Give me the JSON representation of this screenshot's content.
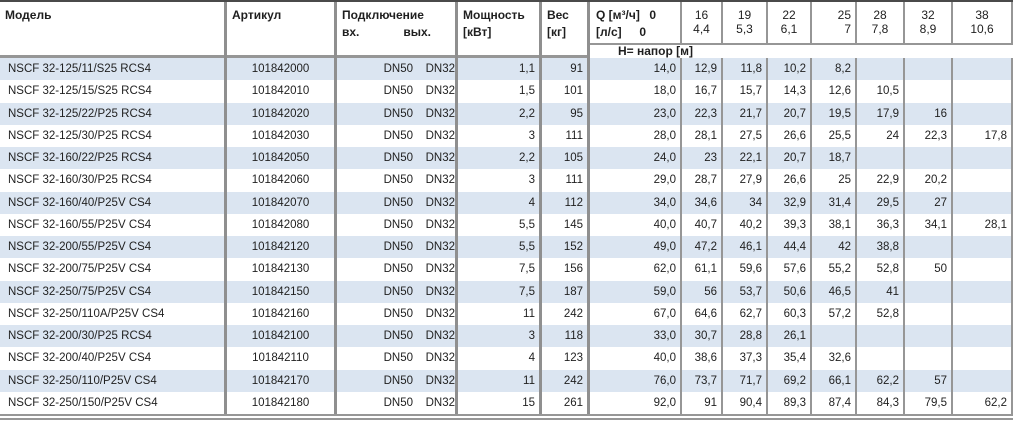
{
  "header": {
    "model": "Модель",
    "article": "Артикул",
    "connection": "Подключение",
    "connection_in": "вх.",
    "connection_out": "вых.",
    "power": "Мощность",
    "power_unit": "[кВт]",
    "weight": "Вес",
    "weight_unit": "[кг]",
    "flow_m3h_label": "Q [м³/ч]",
    "flow_m3h_zero": "0",
    "flow_ls_label": "[л/с]",
    "flow_ls_zero": "0",
    "head_label": "Н= напор [м]"
  },
  "flow_columns": [
    {
      "m3h": "16",
      "ls": "4,4"
    },
    {
      "m3h": "19",
      "ls": "5,3"
    },
    {
      "m3h": "22",
      "ls": "6,1"
    },
    {
      "m3h": "25",
      "ls": "7",
      "align": "right"
    },
    {
      "m3h": "28",
      "ls": "7,8"
    },
    {
      "m3h": "32",
      "ls": "8,9"
    },
    {
      "m3h": "38",
      "ls": "10,6"
    }
  ],
  "rows": [
    {
      "model": "NSCF 32-125/11/S25 RCS4",
      "article": "101842000",
      "dn_in": "DN50",
      "dn_out": "DN32",
      "power": "1,1",
      "weight": "91",
      "head": [
        "14,0",
        "12,9",
        "11,8",
        "10,2",
        "8,2",
        "",
        "",
        ""
      ]
    },
    {
      "model": "NSCF 32-125/15/S25 RCS4",
      "article": "101842010",
      "dn_in": "DN50",
      "dn_out": "DN32",
      "power": "1,5",
      "weight": "101",
      "head": [
        "18,0",
        "16,7",
        "15,7",
        "14,3",
        "12,6",
        "10,5",
        "",
        ""
      ]
    },
    {
      "model": "NSCF 32-125/22/P25 RCS4",
      "article": "101842020",
      "dn_in": "DN50",
      "dn_out": "DN32",
      "power": "2,2",
      "weight": "95",
      "head": [
        "23,0",
        "22,3",
        "21,7",
        "20,7",
        "19,5",
        "17,9",
        "16",
        ""
      ]
    },
    {
      "model": "NSCF 32-125/30/P25 RCS4",
      "article": "101842030",
      "dn_in": "DN50",
      "dn_out": "DN32",
      "power": "3",
      "weight": "111",
      "head": [
        "28,0",
        "28,1",
        "27,5",
        "26,6",
        "25,5",
        "24",
        "22,3",
        "17,8"
      ]
    },
    {
      "model": "NSCF 32-160/22/P25 RCS4",
      "article": "101842050",
      "dn_in": "DN50",
      "dn_out": "DN32",
      "power": "2,2",
      "weight": "105",
      "head": [
        "24,0",
        "23",
        "22,1",
        "20,7",
        "18,7",
        "",
        "",
        ""
      ]
    },
    {
      "model": "NSCF 32-160/30/P25 RCS4",
      "article": "101842060",
      "dn_in": "DN50",
      "dn_out": "DN32",
      "power": "3",
      "weight": "111",
      "head": [
        "29,0",
        "28,7",
        "27,9",
        "26,6",
        "25",
        "22,9",
        "20,2",
        ""
      ]
    },
    {
      "model": "NSCF 32-160/40/P25V CS4",
      "article": "101842070",
      "dn_in": "DN50",
      "dn_out": "DN32",
      "power": "4",
      "weight": "112",
      "head": [
        "34,0",
        "34,6",
        "34",
        "32,9",
        "31,4",
        "29,5",
        "27",
        ""
      ]
    },
    {
      "model": "NSCF 32-160/55/P25V CS4",
      "article": "101842080",
      "dn_in": "DN50",
      "dn_out": "DN32",
      "power": "5,5",
      "weight": "145",
      "head": [
        "40,0",
        "40,7",
        "40,2",
        "39,3",
        "38,1",
        "36,3",
        "34,1",
        "28,1"
      ]
    },
    {
      "model": "NSCF 32-200/55/P25V CS4",
      "article": "101842120",
      "dn_in": "DN50",
      "dn_out": "DN32",
      "power": "5,5",
      "weight": "152",
      "head": [
        "49,0",
        "47,2",
        "46,1",
        "44,4",
        "42",
        "38,8",
        "",
        ""
      ]
    },
    {
      "model": "NSCF 32-200/75/P25V CS4",
      "article": "101842130",
      "dn_in": "DN50",
      "dn_out": "DN32",
      "power": "7,5",
      "weight": "156",
      "head": [
        "62,0",
        "61,1",
        "59,6",
        "57,6",
        "55,2",
        "52,8",
        "50",
        ""
      ]
    },
    {
      "model": "NSCF 32-250/75/P25V CS4",
      "article": "101842150",
      "dn_in": "DN50",
      "dn_out": "DN32",
      "power": "7,5",
      "weight": "187",
      "head": [
        "59,0",
        "56",
        "53,7",
        "50,6",
        "46,5",
        "41",
        "",
        ""
      ]
    },
    {
      "model": "NSCF 32-250/110A/P25V CS4",
      "article": "101842160",
      "dn_in": "DN50",
      "dn_out": "DN32",
      "power": "11",
      "weight": "242",
      "head": [
        "67,0",
        "64,6",
        "62,7",
        "60,3",
        "57,2",
        "52,8",
        "",
        ""
      ]
    },
    {
      "model": "NSCF 32-200/30/P25 RCS4",
      "article": "101842100",
      "dn_in": "DN50",
      "dn_out": "DN32",
      "power": "3",
      "weight": "118",
      "head": [
        "33,0",
        "30,7",
        "28,8",
        "26,1",
        "",
        "",
        "",
        ""
      ]
    },
    {
      "model": "NSCF 32-200/40/P25V CS4",
      "article": "101842110",
      "dn_in": "DN50",
      "dn_out": "DN32",
      "power": "4",
      "weight": "123",
      "head": [
        "40,0",
        "38,6",
        "37,3",
        "35,4",
        "32,6",
        "",
        "",
        ""
      ]
    },
    {
      "model": "NSCF 32-250/110/P25V CS4",
      "article": "101842170",
      "dn_in": "DN50",
      "dn_out": "DN32",
      "power": "11",
      "weight": "242",
      "head": [
        "76,0",
        "73,7",
        "71,7",
        "69,2",
        "66,1",
        "62,2",
        "57",
        ""
      ]
    },
    {
      "model": "NSCF 32-250/150/P25V CS4",
      "article": "101842180",
      "dn_in": "DN50",
      "dn_out": "DN32",
      "power": "15",
      "weight": "261",
      "head": [
        "92,0",
        "91",
        "90,4",
        "89,3",
        "87,4",
        "84,3",
        "79,5",
        "62,2"
      ]
    }
  ],
  "colors": {
    "row_alt": "#dbe5f1",
    "border_light": "#969696",
    "border_heavy": "#8f8f8f",
    "top_rule": "#4a4a4a",
    "text": "#1f1f1f"
  }
}
